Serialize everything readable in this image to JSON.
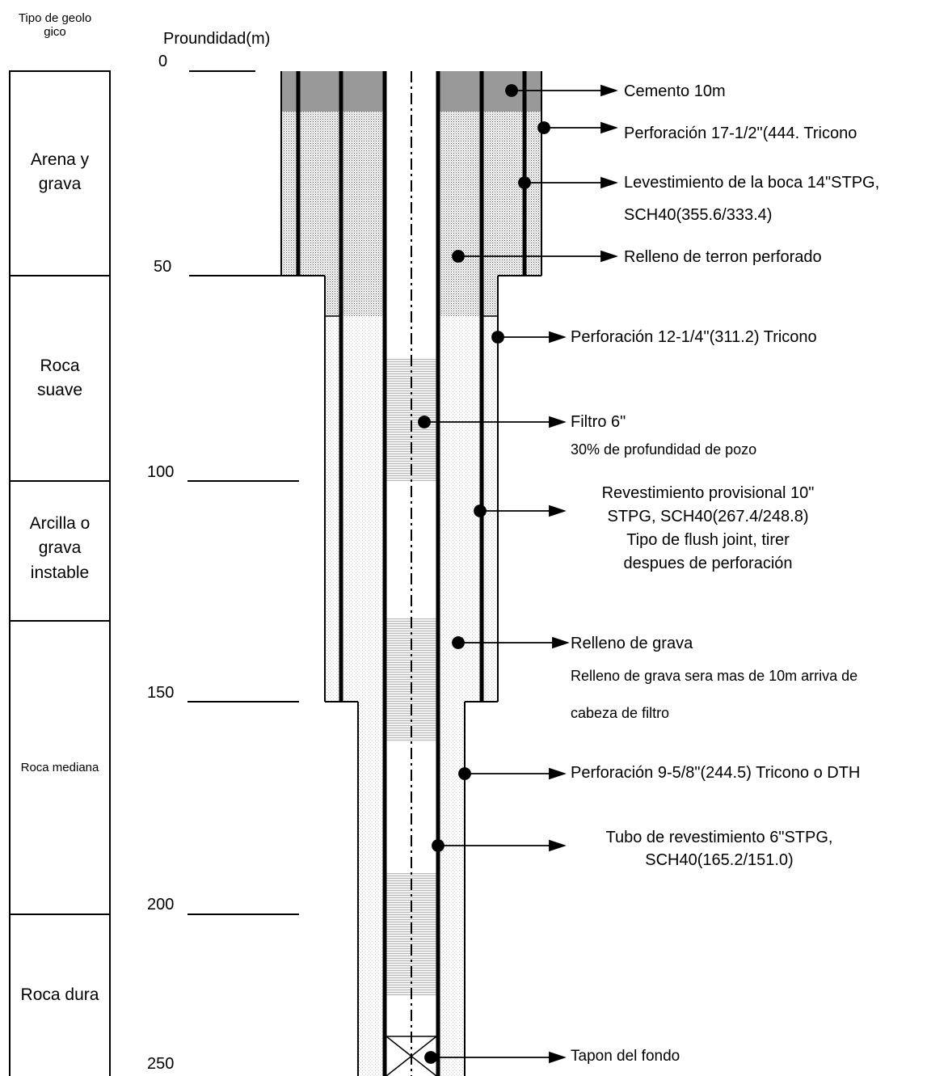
{
  "header": {
    "geology_title": "Tipo de geolo\ngico",
    "depth_title": "Proundidad(m)"
  },
  "depth_ticks": [
    "0",
    "50",
    "100",
    "150",
    "200",
    "250"
  ],
  "layers": [
    {
      "name": "Arena y\ngrava"
    },
    {
      "name": "Roca\nsuave"
    },
    {
      "name": "Arcilla o\ngrava\ninstable"
    },
    {
      "name": ""
    },
    {
      "name": "Roca mediana"
    },
    {
      "name": "Roca dura"
    }
  ],
  "annotations": {
    "cement": "Cemento  10m",
    "drill_17": "Perforación  17-1/2\"(444. Tricono",
    "casing_14_line1": "Levestimiento de la boca 14\"STPG,",
    "casing_14_line2": "SCH40(355.6/333.4)",
    "relleno_terron": "Relleno de terron perforado",
    "drill_12": "Perforación  12-1/4\"(311.2) Tricono",
    "filtro": "Filtro 6\"",
    "filtro_note": "30% de profundidad de pozo",
    "revest_prov": "Revestimiento provisional 10\"\nSTPG, SCH40(267.4/248.8)\nTipo de flush joint, tirer\ndespues de perforación",
    "relleno_grava": "Relleno de grava",
    "relleno_grava_note1": "Relleno de grava sera mas de 10m arriva de",
    "relleno_grava_note2": "cabeza de filtro",
    "drill_9": "Perforación 9-5/8\"(244.5) Tricono o DTH",
    "tubo_6": "Tubo de revestimiento 6\"STPG,\nSCH40(165.2/151.0)",
    "tapon": "Tapon del fondo"
  },
  "colors": {
    "cement": "#999999",
    "line": "#000000"
  }
}
